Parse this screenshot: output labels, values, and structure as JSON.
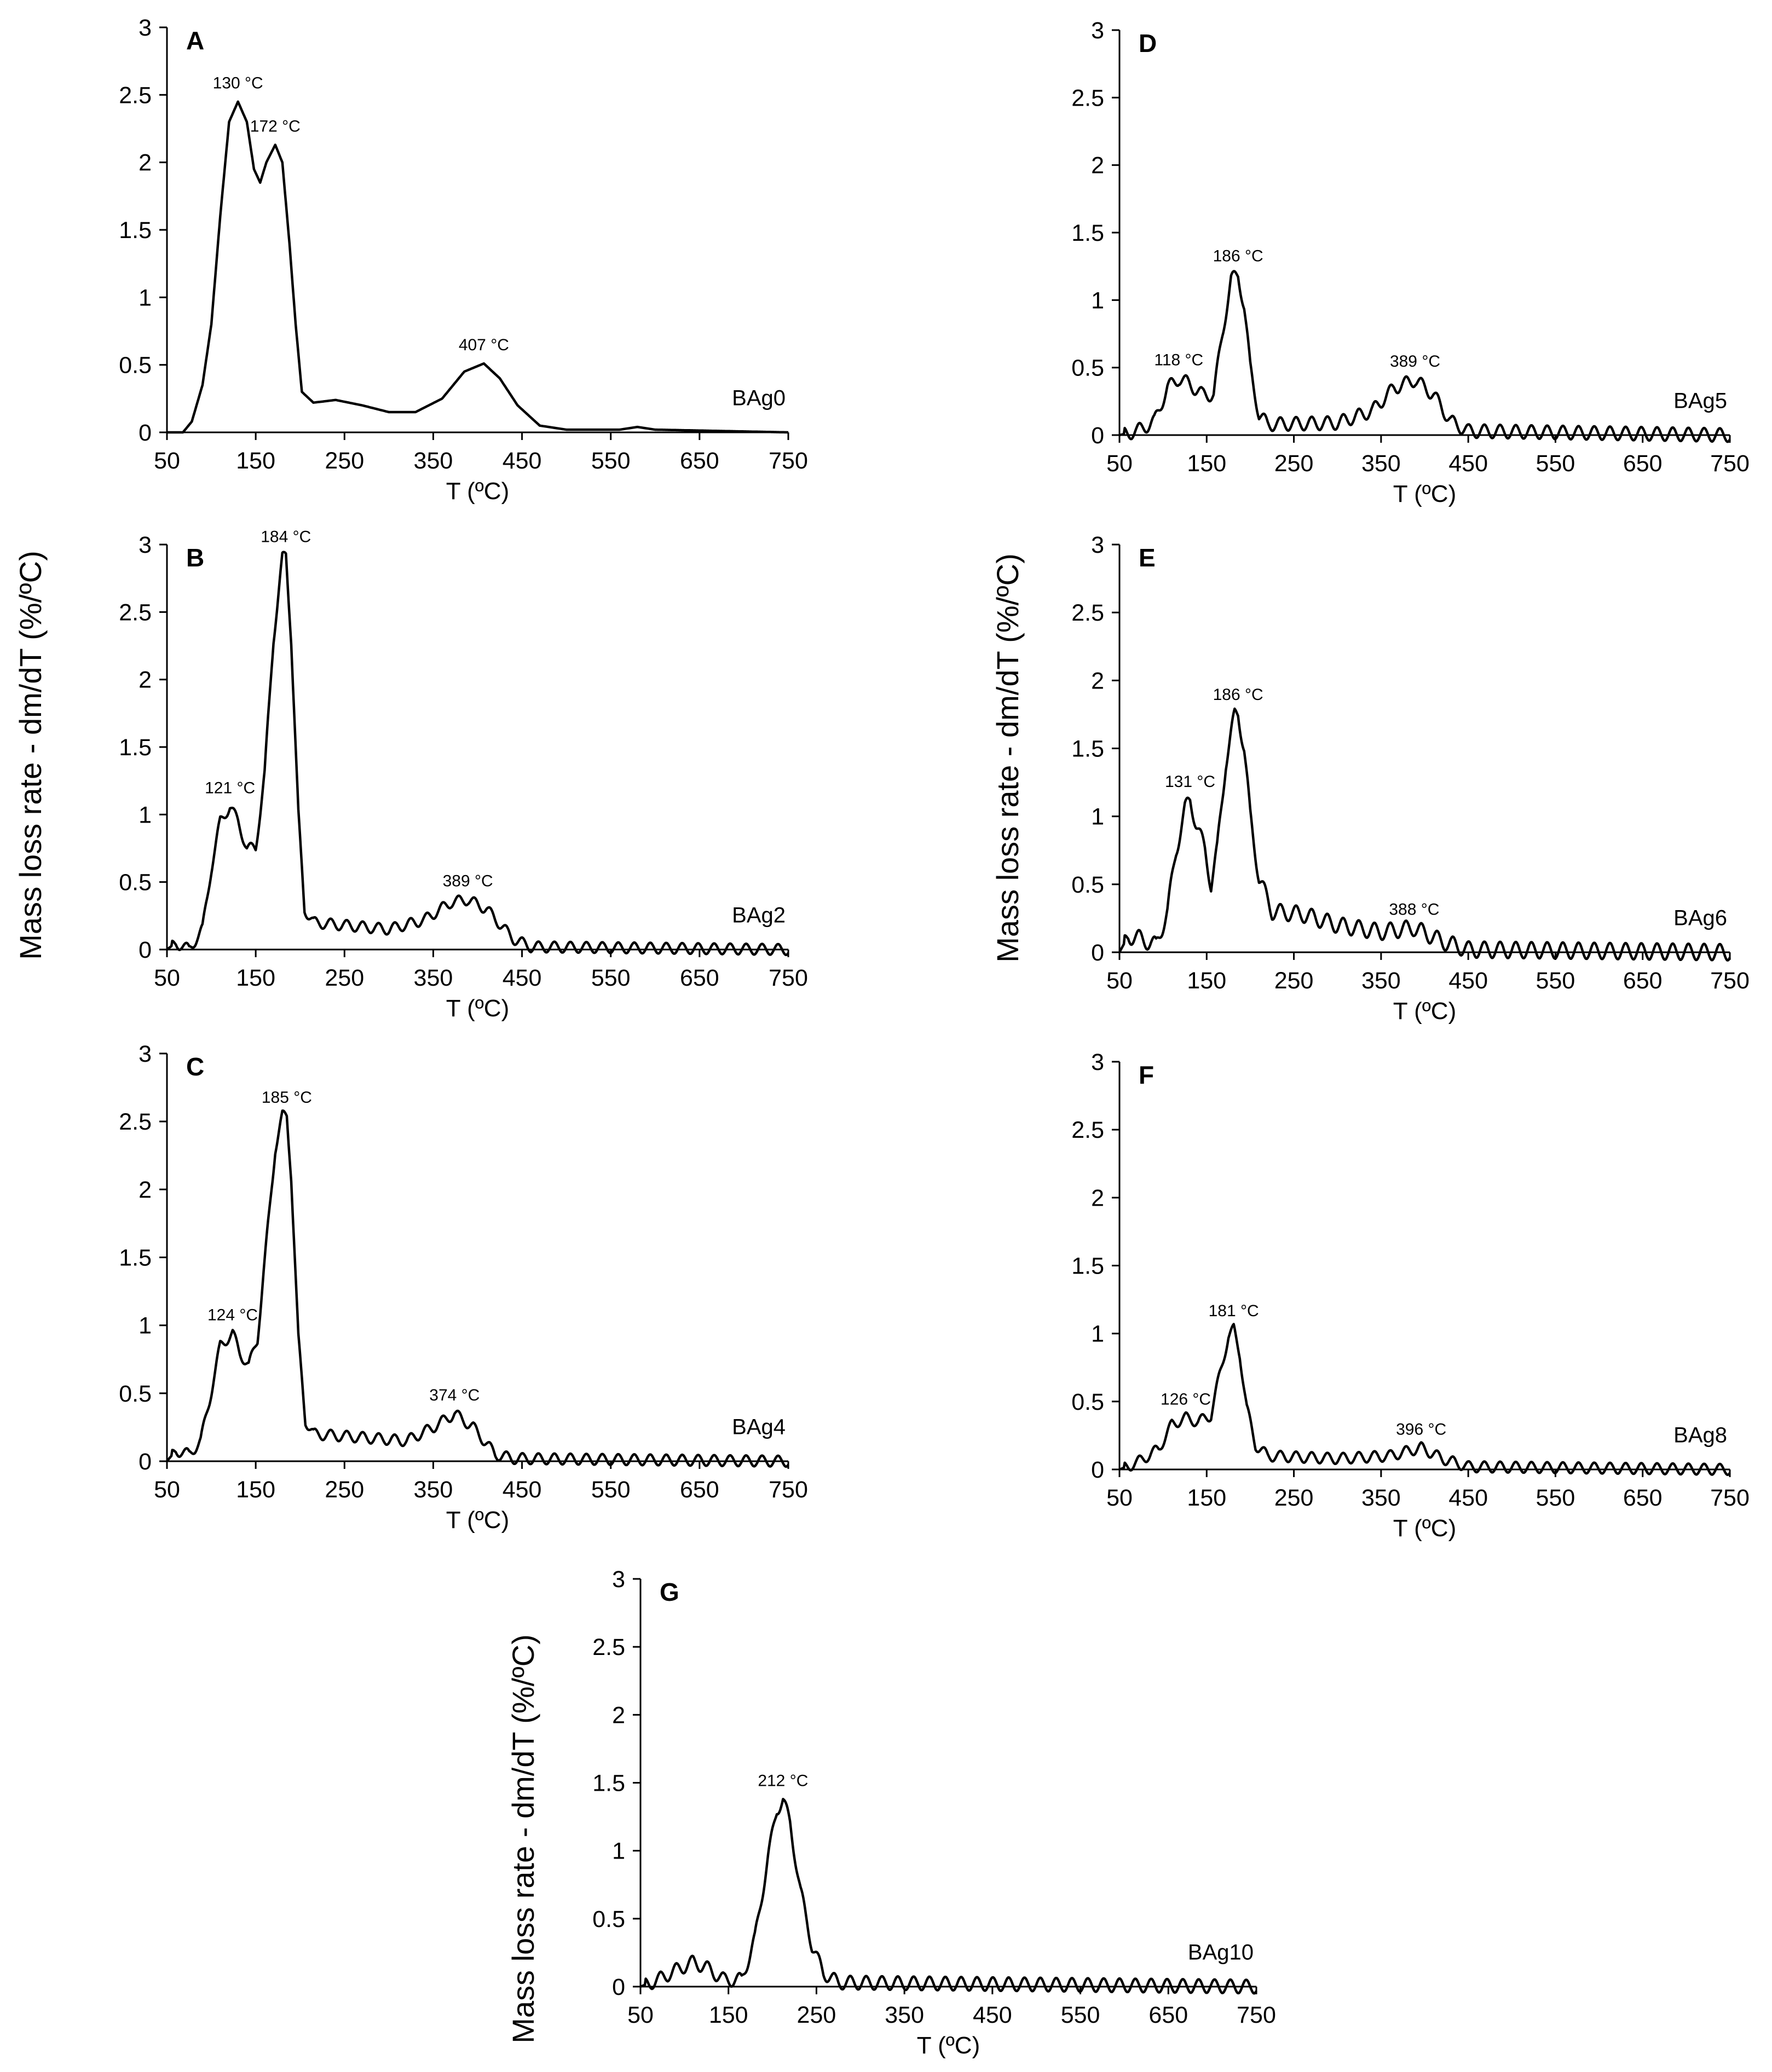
{
  "figure": {
    "ylabels": [
      "Mass loss rate - dm/dT  (%/ºC)",
      "Mass loss rate - dm/dT  (%/ºC)",
      "Mass loss rate - dm/dT  (%/ºC)"
    ]
  },
  "chart_data": [
    {
      "type": "line",
      "panel": "A",
      "sample": "BAg0",
      "xlabel": "T (ºC)",
      "ylabel": "",
      "xlim": [
        50,
        750
      ],
      "ylim": [
        0,
        3
      ],
      "xticks": [
        "50",
        "150",
        "250",
        "350",
        "450",
        "550",
        "650",
        "750"
      ],
      "yticks": [
        "0",
        "0.5",
        "1",
        "1.5",
        "2",
        "2.5",
        "3"
      ],
      "grid": false,
      "peaks": [
        {
          "x": 130,
          "y": 2.45,
          "label": "130 °C"
        },
        {
          "x": 172,
          "y": 2.13,
          "label": "172 °C"
        },
        {
          "x": 407,
          "y": 0.51,
          "label": "407 °C"
        }
      ],
      "series": [
        {
          "ripple": 0,
          "points": [
            [
              50,
              0
            ],
            [
              68,
              0
            ],
            [
              78,
              0.08
            ],
            [
              90,
              0.35
            ],
            [
              100,
              0.8
            ],
            [
              110,
              1.6
            ],
            [
              120,
              2.3
            ],
            [
              130,
              2.45
            ],
            [
              140,
              2.3
            ],
            [
              148,
              1.95
            ],
            [
              155,
              1.85
            ],
            [
              162,
              2.0
            ],
            [
              172,
              2.13
            ],
            [
              180,
              2.0
            ],
            [
              188,
              1.4
            ],
            [
              195,
              0.8
            ],
            [
              202,
              0.3
            ],
            [
              215,
              0.22
            ],
            [
              240,
              0.24
            ],
            [
              270,
              0.2
            ],
            [
              300,
              0.15
            ],
            [
              330,
              0.15
            ],
            [
              360,
              0.25
            ],
            [
              385,
              0.45
            ],
            [
              407,
              0.51
            ],
            [
              425,
              0.4
            ],
            [
              445,
              0.2
            ],
            [
              470,
              0.05
            ],
            [
              500,
              0.02
            ],
            [
              560,
              0.02
            ],
            [
              580,
              0.04
            ],
            [
              600,
              0.02
            ],
            [
              750,
              0
            ]
          ]
        }
      ]
    },
    {
      "type": "line",
      "panel": "B",
      "sample": "BAg2",
      "xlabel": "T (ºC)",
      "ylabel": "",
      "xlim": [
        50,
        750
      ],
      "ylim": [
        0,
        3
      ],
      "xticks": [
        "50",
        "150",
        "250",
        "350",
        "450",
        "550",
        "650",
        "750"
      ],
      "yticks": [
        "0",
        "0.5",
        "1",
        "1.5",
        "2",
        "2.5",
        "3"
      ],
      "grid": false,
      "peaks": [
        {
          "x": 121,
          "y": 1.06,
          "label": "121 °C"
        },
        {
          "x": 184,
          "y": 2.92,
          "label": "184 °C"
        },
        {
          "x": 389,
          "y": 0.37,
          "label": "389 °C"
        }
      ],
      "series": [
        {
          "ripple": 0.04,
          "points": [
            [
              50,
              0
            ],
            [
              60,
              0.05
            ],
            [
              75,
              0
            ],
            [
              90,
              0.15
            ],
            [
              100,
              0.6
            ],
            [
              110,
              0.95
            ],
            [
              121,
              1.06
            ],
            [
              130,
              0.95
            ],
            [
              140,
              0.75
            ],
            [
              150,
              0.75
            ],
            [
              160,
              1.3
            ],
            [
              170,
              2.3
            ],
            [
              180,
              2.9
            ],
            [
              184,
              2.92
            ],
            [
              190,
              2.3
            ],
            [
              198,
              1.0
            ],
            [
              205,
              0.3
            ],
            [
              215,
              0.2
            ],
            [
              250,
              0.18
            ],
            [
              300,
              0.15
            ],
            [
              340,
              0.22
            ],
            [
              370,
              0.35
            ],
            [
              389,
              0.37
            ],
            [
              410,
              0.3
            ],
            [
              440,
              0.08
            ],
            [
              460,
              0.02
            ],
            [
              750,
              0
            ]
          ]
        }
      ]
    },
    {
      "type": "line",
      "panel": "C",
      "sample": "BAg4",
      "xlabel": "T (ºC)",
      "ylabel": "",
      "xlim": [
        50,
        750
      ],
      "ylim": [
        0,
        3
      ],
      "xticks": [
        "50",
        "150",
        "250",
        "350",
        "450",
        "550",
        "650",
        "750"
      ],
      "yticks": [
        "0",
        "0.5",
        "1",
        "1.5",
        "2",
        "2.5",
        "3"
      ],
      "grid": false,
      "peaks": [
        {
          "x": 124,
          "y": 0.94,
          "label": "124 °C"
        },
        {
          "x": 185,
          "y": 2.54,
          "label": "185 °C"
        },
        {
          "x": 374,
          "y": 0.35,
          "label": "374 °C"
        }
      ],
      "series": [
        {
          "ripple": 0.04,
          "points": [
            [
              50,
              0
            ],
            [
              60,
              0.08
            ],
            [
              75,
              0.05
            ],
            [
              88,
              0.15
            ],
            [
              98,
              0.45
            ],
            [
              110,
              0.85
            ],
            [
              124,
              0.94
            ],
            [
              132,
              0.8
            ],
            [
              142,
              0.7
            ],
            [
              152,
              0.9
            ],
            [
              162,
              1.6
            ],
            [
              172,
              2.3
            ],
            [
              180,
              2.54
            ],
            [
              185,
              2.54
            ],
            [
              190,
              2.1
            ],
            [
              198,
              0.9
            ],
            [
              206,
              0.3
            ],
            [
              215,
              0.2
            ],
            [
              260,
              0.18
            ],
            [
              320,
              0.15
            ],
            [
              350,
              0.25
            ],
            [
              374,
              0.35
            ],
            [
              395,
              0.25
            ],
            [
              420,
              0.05
            ],
            [
              440,
              0.02
            ],
            [
              750,
              0
            ]
          ]
        }
      ]
    },
    {
      "type": "line",
      "panel": "D",
      "sample": "BAg5",
      "xlabel": "T (ºC)",
      "ylabel": "",
      "xlim": [
        50,
        750
      ],
      "ylim": [
        0,
        3
      ],
      "xticks": [
        "50",
        "150",
        "250",
        "350",
        "450",
        "550",
        "650",
        "750"
      ],
      "yticks": [
        "0",
        "0.5",
        "1",
        "1.5",
        "2",
        "2.5",
        "3"
      ],
      "grid": false,
      "peaks": [
        {
          "x": 118,
          "y": 0.42,
          "label": "118 °C"
        },
        {
          "x": 186,
          "y": 1.19,
          "label": "186 °C"
        },
        {
          "x": 389,
          "y": 0.41,
          "label": "389 °C"
        }
      ],
      "series": [
        {
          "ripple": 0.05,
          "points": [
            [
              50,
              0
            ],
            [
              70,
              0.03
            ],
            [
              90,
              0.1
            ],
            [
              105,
              0.35
            ],
            [
              118,
              0.42
            ],
            [
              130,
              0.38
            ],
            [
              145,
              0.3
            ],
            [
              158,
              0.3
            ],
            [
              168,
              0.75
            ],
            [
              178,
              1.15
            ],
            [
              186,
              1.19
            ],
            [
              193,
              0.95
            ],
            [
              200,
              0.5
            ],
            [
              210,
              0.15
            ],
            [
              220,
              0.08
            ],
            [
              300,
              0.09
            ],
            [
              340,
              0.18
            ],
            [
              365,
              0.35
            ],
            [
              389,
              0.41
            ],
            [
              410,
              0.3
            ],
            [
              430,
              0.1
            ],
            [
              450,
              0.03
            ],
            [
              750,
              0
            ]
          ]
        }
      ]
    },
    {
      "type": "line",
      "panel": "E",
      "sample": "BAg6",
      "xlabel": "T (ºC)",
      "ylabel": "",
      "xlim": [
        50,
        750
      ],
      "ylim": [
        0,
        3
      ],
      "xticks": [
        "50",
        "150",
        "250",
        "350",
        "450",
        "550",
        "650",
        "750"
      ],
      "yticks": [
        "0",
        "0.5",
        "1",
        "1.5",
        "2",
        "2.5",
        "3"
      ],
      "grid": false,
      "peaks": [
        {
          "x": 131,
          "y": 1.12,
          "label": "131 °C"
        },
        {
          "x": 186,
          "y": 1.76,
          "label": "186 °C"
        },
        {
          "x": 388,
          "y": 0.18,
          "label": "388 °C"
        }
      ],
      "series": [
        {
          "ripple": 0.06,
          "points": [
            [
              50,
              0
            ],
            [
              60,
              0.12
            ],
            [
              75,
              0.1
            ],
            [
              92,
              0.05
            ],
            [
              105,
              0.3
            ],
            [
              115,
              0.75
            ],
            [
              125,
              1.05
            ],
            [
              131,
              1.12
            ],
            [
              138,
              0.95
            ],
            [
              148,
              0.75
            ],
            [
              155,
              0.5
            ],
            [
              162,
              0.75
            ],
            [
              172,
              1.4
            ],
            [
              182,
              1.74
            ],
            [
              186,
              1.76
            ],
            [
              193,
              1.5
            ],
            [
              200,
              1.0
            ],
            [
              210,
              0.55
            ],
            [
              225,
              0.3
            ],
            [
              260,
              0.28
            ],
            [
              300,
              0.2
            ],
            [
              350,
              0.15
            ],
            [
              388,
              0.18
            ],
            [
              420,
              0.08
            ],
            [
              450,
              0.02
            ],
            [
              750,
              0
            ]
          ]
        }
      ]
    },
    {
      "type": "line",
      "panel": "F",
      "sample": "BAg8",
      "xlabel": "T (ºC)",
      "ylabel": "",
      "xlim": [
        50,
        750
      ],
      "ylim": [
        0,
        3
      ],
      "xticks": [
        "50",
        "150",
        "250",
        "350",
        "450",
        "550",
        "650",
        "750"
      ],
      "yticks": [
        "0",
        "0.5",
        "1",
        "1.5",
        "2",
        "2.5",
        "3"
      ],
      "grid": false,
      "peaks": [
        {
          "x": 126,
          "y": 0.38,
          "label": "126 °C"
        },
        {
          "x": 181,
          "y": 1.03,
          "label": "181 °C"
        },
        {
          "x": 396,
          "y": 0.16,
          "label": "396 °C"
        }
      ],
      "series": [
        {
          "ripple": 0.04,
          "points": [
            [
              50,
              0
            ],
            [
              70,
              0.05
            ],
            [
              95,
              0.15
            ],
            [
              110,
              0.33
            ],
            [
              126,
              0.38
            ],
            [
              140,
              0.35
            ],
            [
              155,
              0.4
            ],
            [
              165,
              0.7
            ],
            [
              175,
              0.98
            ],
            [
              181,
              1.03
            ],
            [
              188,
              0.85
            ],
            [
              196,
              0.45
            ],
            [
              206,
              0.18
            ],
            [
              220,
              0.1
            ],
            [
              300,
              0.08
            ],
            [
              360,
              0.1
            ],
            [
              396,
              0.16
            ],
            [
              420,
              0.08
            ],
            [
              450,
              0.02
            ],
            [
              750,
              0
            ]
          ]
        }
      ]
    },
    {
      "type": "line",
      "panel": "G",
      "sample": "BAg10",
      "xlabel": "T (ºC)",
      "ylabel": "",
      "xlim": [
        50,
        750
      ],
      "ylim": [
        0,
        3
      ],
      "xticks": [
        "50",
        "150",
        "250",
        "350",
        "450",
        "550",
        "650",
        "750"
      ],
      "yticks": [
        "0",
        "0.5",
        "1",
        "1.5",
        "2",
        "2.5",
        "3"
      ],
      "grid": false,
      "peaks": [
        {
          "x": 212,
          "y": 1.38,
          "label": "212 °C"
        }
      ],
      "series": [
        {
          "ripple": 0.05,
          "points": [
            [
              50,
              0
            ],
            [
              70,
              0.05
            ],
            [
              90,
              0.12
            ],
            [
              110,
              0.18
            ],
            [
              125,
              0.14
            ],
            [
              145,
              0.05
            ],
            [
              165,
              0.05
            ],
            [
              180,
              0.35
            ],
            [
              195,
              0.95
            ],
            [
              205,
              1.3
            ],
            [
              212,
              1.38
            ],
            [
              220,
              1.2
            ],
            [
              232,
              0.7
            ],
            [
              245,
              0.3
            ],
            [
              258,
              0.1
            ],
            [
              275,
              0.03
            ],
            [
              750,
              0
            ]
          ]
        }
      ]
    }
  ]
}
